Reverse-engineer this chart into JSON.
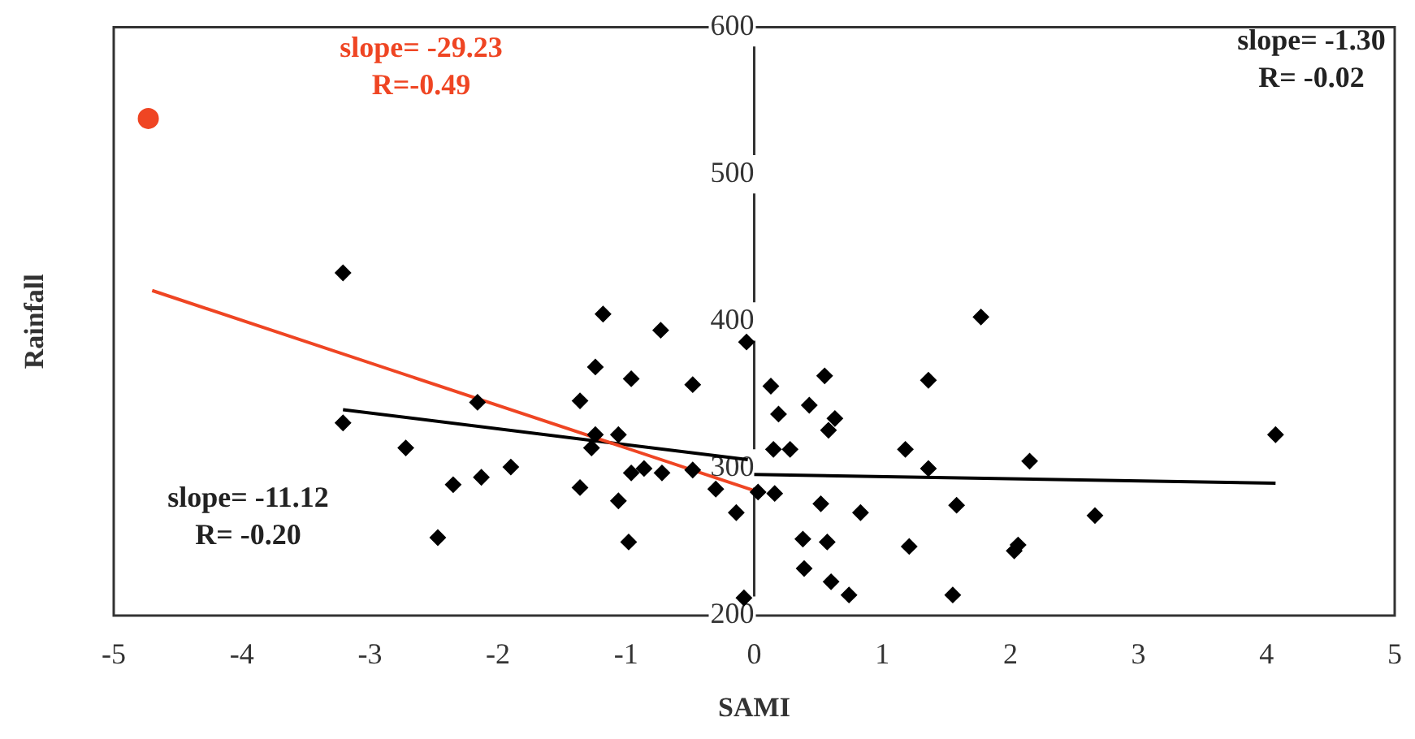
{
  "chart_data": {
    "type": "scatter",
    "xlabel": "SAMI",
    "ylabel": "Rainfall",
    "xlim": [
      -5,
      5
    ],
    "xticks": [
      -5,
      -4,
      -3,
      -2,
      -1,
      0,
      1,
      2,
      3,
      4,
      5
    ],
    "ylim": [
      200,
      600
    ],
    "yticks": [
      200,
      300,
      400,
      500,
      600
    ],
    "grid": false,
    "legend": false,
    "series": [
      {
        "type": "scatter",
        "marker": "diamond",
        "color": "#000000",
        "x": [
          -3.21,
          -3.21,
          -2.72,
          -2.16,
          -2.35,
          -2.13,
          -1.9,
          -2.47,
          -1.36,
          -1.36,
          -1.18,
          -0.73,
          -1.24,
          -0.96,
          -0.48,
          -0.06,
          -1.24,
          -1.27,
          -1.06,
          -1.06,
          -0.98,
          -0.96,
          -0.86,
          -0.72,
          -0.48,
          -0.3,
          -0.14,
          -0.08,
          0.03,
          0.16,
          0.13,
          0.19,
          0.15,
          0.28,
          0.43,
          0.55,
          0.63,
          0.58,
          0.52,
          0.38,
          0.57,
          0.39,
          0.6,
          0.74,
          1.77,
          1.36,
          1.18,
          1.36,
          2.15,
          4.07,
          0.83,
          1.58,
          2.66,
          1.21,
          2.06,
          2.03,
          1.55
        ],
        "values": [
          433,
          331,
          314,
          345,
          289,
          294,
          301,
          253,
          346,
          287,
          405,
          394,
          369,
          361,
          357,
          386,
          323,
          314,
          323,
          278,
          250,
          297,
          300,
          297,
          299,
          286,
          270,
          212,
          284,
          283,
          356,
          337,
          313,
          313,
          343,
          363,
          334,
          326,
          276,
          252,
          250,
          232,
          223,
          214,
          403,
          360,
          313,
          300,
          305,
          323,
          270,
          275,
          268,
          247,
          248,
          244,
          214
        ]
      },
      {
        "type": "scatter",
        "marker": "circle",
        "color": "#ef4523",
        "x": [
          -4.73
        ],
        "values": [
          538
        ]
      },
      {
        "type": "line",
        "marker": "none",
        "color": "#ef4523",
        "x": [
          -4.7,
          0
        ],
        "values": [
          421,
          285
        ]
      },
      {
        "type": "line",
        "marker": "none",
        "color": "#000000",
        "x": [
          -3.21,
          -0.05
        ],
        "values": [
          340,
          306
        ]
      },
      {
        "type": "line",
        "marker": "none",
        "color": "#000000",
        "x": [
          0,
          4.07
        ],
        "values": [
          296,
          290
        ]
      }
    ],
    "annotations": [
      "slope= -29.23\nR=-0.49",
      "slope= -1.30\nR= -0.02",
      "slope= -11.12\nR= -0.20"
    ]
  }
}
